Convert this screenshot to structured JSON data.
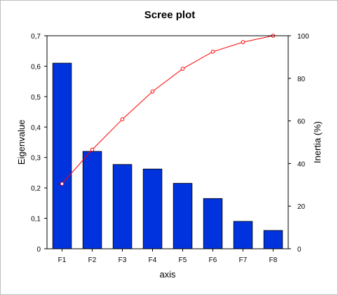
{
  "chart_data": {
    "type": "bar",
    "title": "Scree plot",
    "xlabel": "axis",
    "ylabel": "Eigenvalue",
    "y2label": "Inertia (%)",
    "categories": [
      "F1",
      "F2",
      "F3",
      "F4",
      "F5",
      "F6",
      "F7",
      "F8"
    ],
    "series": [
      {
        "type": "bar",
        "axis": "left",
        "color": "#0033dd",
        "values": [
          0.61,
          0.32,
          0.277,
          0.262,
          0.215,
          0.165,
          0.09,
          0.06
        ]
      },
      {
        "type": "line",
        "axis": "right",
        "color": "#ff0000",
        "values": [
          30.5,
          46.5,
          60.8,
          73.8,
          84.5,
          92.5,
          97.0,
          100.0
        ]
      }
    ],
    "ylim": [
      0,
      0.7
    ],
    "y_ticks": [
      "0",
      "0,1",
      "0,2",
      "0,3",
      "0,4",
      "0,5",
      "0,6",
      "0,7"
    ],
    "y2lim": [
      0,
      100
    ],
    "y2_ticks": [
      "0",
      "20",
      "40",
      "60",
      "80",
      "100"
    ],
    "grid": false,
    "legend": "none"
  }
}
